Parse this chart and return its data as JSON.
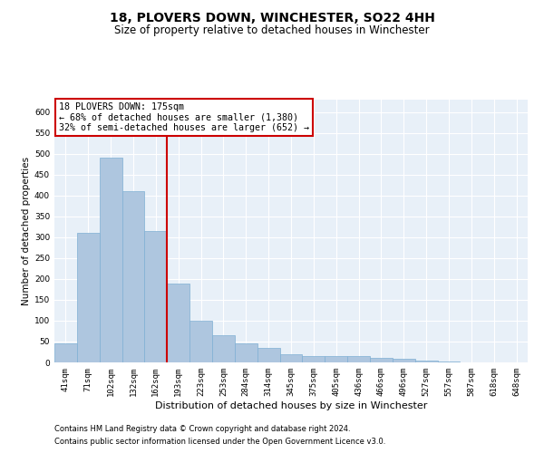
{
  "title": "18, PLOVERS DOWN, WINCHESTER, SO22 4HH",
  "subtitle": "Size of property relative to detached houses in Winchester",
  "xlabel": "Distribution of detached houses by size in Winchester",
  "ylabel": "Number of detached properties",
  "categories": [
    "41sqm",
    "71sqm",
    "102sqm",
    "132sqm",
    "162sqm",
    "193sqm",
    "223sqm",
    "253sqm",
    "284sqm",
    "314sqm",
    "345sqm",
    "375sqm",
    "405sqm",
    "436sqm",
    "466sqm",
    "496sqm",
    "527sqm",
    "557sqm",
    "587sqm",
    "618sqm",
    "648sqm"
  ],
  "values": [
    45,
    310,
    490,
    410,
    315,
    190,
    100,
    65,
    45,
    35,
    20,
    15,
    15,
    15,
    10,
    8,
    5,
    2,
    0,
    1,
    1
  ],
  "bar_color": "#aec6df",
  "bar_edge_color": "#7fafd4",
  "background_color": "#e8f0f8",
  "grid_color": "#ffffff",
  "vline_x": 4.5,
  "vline_color": "#cc0000",
  "annotation_text": "18 PLOVERS DOWN: 175sqm\n← 68% of detached houses are smaller (1,380)\n32% of semi-detached houses are larger (652) →",
  "annotation_box_color": "#cc0000",
  "ylim": [
    0,
    630
  ],
  "yticks": [
    0,
    50,
    100,
    150,
    200,
    250,
    300,
    350,
    400,
    450,
    500,
    550,
    600
  ],
  "footnote1": "Contains HM Land Registry data © Crown copyright and database right 2024.",
  "footnote2": "Contains public sector information licensed under the Open Government Licence v3.0.",
  "title_fontsize": 10,
  "subtitle_fontsize": 8.5,
  "xlabel_fontsize": 8,
  "ylabel_fontsize": 7.5,
  "tick_fontsize": 6.5,
  "annotation_fontsize": 7.2,
  "footnote_fontsize": 6
}
